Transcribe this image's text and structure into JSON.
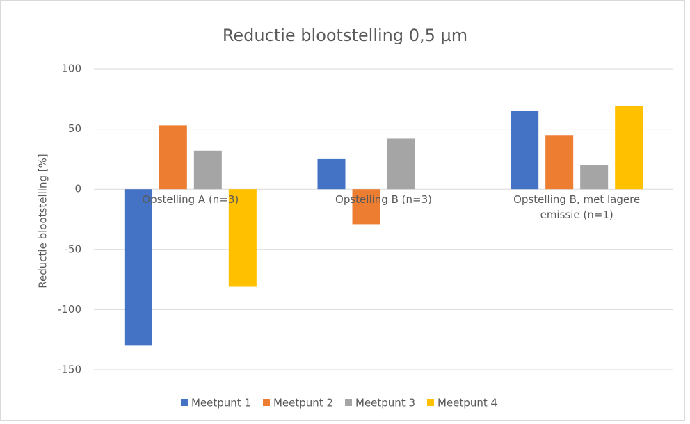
{
  "chart_data": {
    "type": "bar",
    "title": "Reductie blootstelling 0,5 µm",
    "y_label": "Reductie blootstelling [%]",
    "categories": [
      "Opstelling A (n=3)",
      "Opstelling B (n=3)",
      "Opstelling B, met lagere emissie (n=1)"
    ],
    "series": [
      {
        "name": "Meetpunt 1",
        "color": "#4472c4",
        "values": [
          -130,
          25,
          65
        ]
      },
      {
        "name": "Meetpunt 2",
        "color": "#ed7d31",
        "values": [
          53,
          -29,
          45
        ]
      },
      {
        "name": "Meetpunt 3",
        "color": "#a5a5a5",
        "values": [
          32,
          42,
          20
        ]
      },
      {
        "name": "Meetpunt 4",
        "color": "#ffc000",
        "values": [
          -81,
          null,
          69
        ]
      }
    ],
    "ylim": [
      -150,
      100
    ],
    "yticks": [
      -150,
      -100,
      -50,
      0,
      50,
      100
    ],
    "grid": true,
    "legend": "bottom"
  }
}
